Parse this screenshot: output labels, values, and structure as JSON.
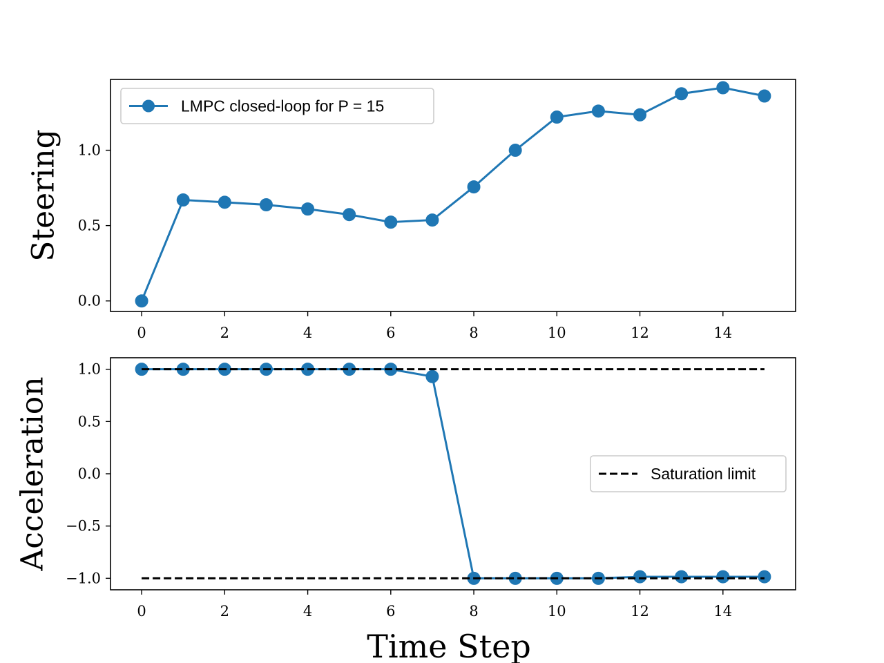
{
  "chart_data": [
    {
      "type": "line",
      "ylabel": "Steering",
      "xlabel": "",
      "xlim": [
        -0.75,
        15.75
      ],
      "ylim": [
        -0.07,
        1.47
      ],
      "xticks": [
        0,
        2,
        4,
        6,
        8,
        10,
        12,
        14
      ],
      "xtick_labels": [
        "0",
        "2",
        "4",
        "6",
        "8",
        "10",
        "12",
        "14"
      ],
      "yticks": [
        0.0,
        0.5,
        1.0
      ],
      "ytick_labels": [
        "0.0",
        "0.5",
        "1.0"
      ],
      "legend_position": "upper-left",
      "grid": false,
      "series": [
        {
          "name": "LMPC closed-loop for P = 15",
          "color": "#1f77b4",
          "marker": "circle",
          "linestyle": "solid",
          "x": [
            0,
            1,
            2,
            3,
            4,
            5,
            6,
            7,
            8,
            9,
            10,
            11,
            12,
            13,
            14,
            15
          ],
          "y": [
            0.0,
            0.67,
            0.655,
            0.638,
            0.61,
            0.573,
            0.523,
            0.537,
            0.757,
            1.0,
            1.22,
            1.26,
            1.235,
            1.375,
            1.415,
            1.36
          ]
        }
      ]
    },
    {
      "type": "line",
      "ylabel": "Acceleration",
      "xlabel": "Time Step",
      "xlim": [
        -0.75,
        15.75
      ],
      "ylim": [
        -1.11,
        1.11
      ],
      "xticks": [
        0,
        2,
        4,
        6,
        8,
        10,
        12,
        14
      ],
      "xtick_labels": [
        "0",
        "2",
        "4",
        "6",
        "8",
        "10",
        "12",
        "14"
      ],
      "yticks": [
        -1.0,
        -0.5,
        0.0,
        0.5,
        1.0
      ],
      "ytick_labels": [
        "−1.0",
        "−0.5",
        "0.0",
        "0.5",
        "1.0"
      ],
      "legend_position": "center-right",
      "grid": false,
      "series": [
        {
          "name": "",
          "color": "#1f77b4",
          "marker": "circle",
          "linestyle": "solid",
          "x": [
            0,
            1,
            2,
            3,
            4,
            5,
            6,
            7,
            8,
            9,
            10,
            11,
            12,
            13,
            14,
            15
          ],
          "y": [
            1.0,
            1.0,
            1.0,
            1.0,
            1.0,
            1.0,
            1.0,
            0.93,
            -1.0,
            -1.0,
            -1.0,
            -1.0,
            -0.985,
            -0.985,
            -0.985,
            -0.985
          ]
        },
        {
          "name": "Saturation limit",
          "color": "#000000",
          "marker": "none",
          "linestyle": "dashed",
          "x": [
            0,
            15
          ],
          "y": [
            1.0,
            1.0
          ]
        },
        {
          "name": "",
          "color": "#000000",
          "marker": "none",
          "linestyle": "dashed",
          "x": [
            0,
            15
          ],
          "y": [
            -1.0,
            -1.0
          ]
        }
      ]
    }
  ]
}
